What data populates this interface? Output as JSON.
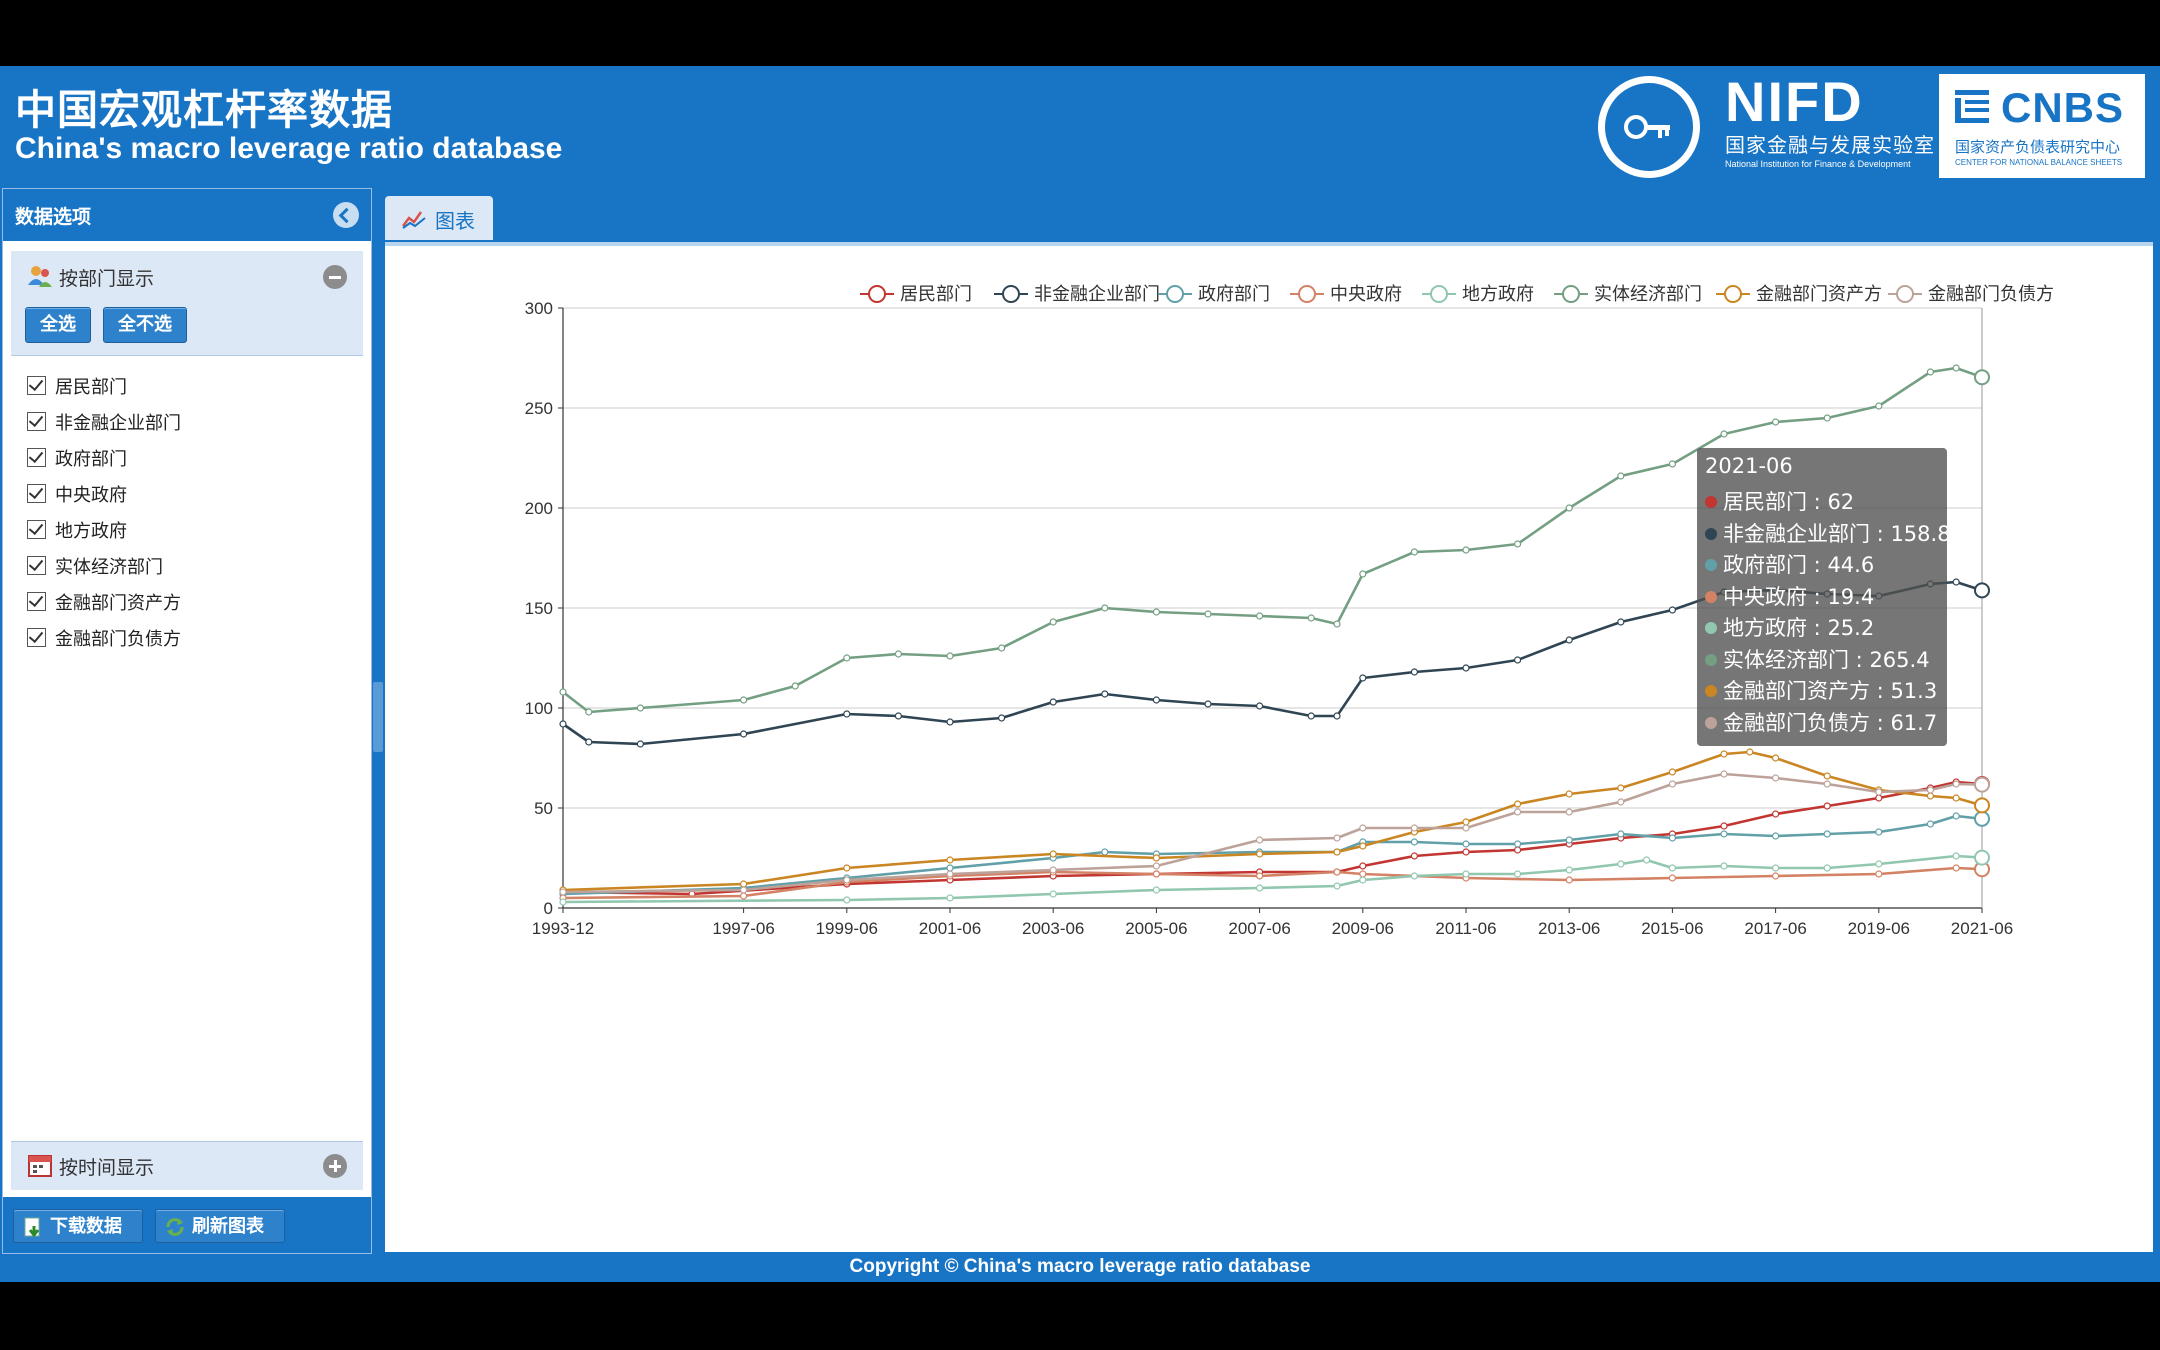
{
  "header": {
    "title_cn": "中国宏观杠杆率数据",
    "title_en": "China's macro leverage ratio database",
    "nifd_mark": "NIFD",
    "nifd_cn": "国家金融与发展实验室",
    "nifd_en": "National Institution for Finance & Development",
    "cnbs_mark": "CNBS",
    "cnbs_cn": "国家资产负债表研究中心",
    "cnbs_en": "CENTER FOR NATIONAL BALANCE SHEETS"
  },
  "left_panel": {
    "title": "数据选项",
    "by_sector": {
      "title": "按部门显示",
      "select_all": "全选",
      "select_none": "全不选",
      "items": [
        {
          "label": "居民部门",
          "checked": true
        },
        {
          "label": "非金融企业部门",
          "checked": true
        },
        {
          "label": "政府部门",
          "checked": true
        },
        {
          "label": "中央政府",
          "checked": true
        },
        {
          "label": "地方政府",
          "checked": true
        },
        {
          "label": "实体经济部门",
          "checked": true
        },
        {
          "label": "金融部门资产方",
          "checked": true
        },
        {
          "label": "金融部门负债方",
          "checked": true
        }
      ]
    },
    "by_time": {
      "title": "按时间显示"
    },
    "download_label": "下载数据",
    "refresh_label": "刷新图表"
  },
  "tab": {
    "label": "图表"
  },
  "footer": {
    "text": "Copyright © China's macro leverage ratio database"
  },
  "chart_data": {
    "type": "line",
    "ylim": [
      0,
      300
    ],
    "yticks": [
      0,
      50,
      100,
      150,
      200,
      250,
      300
    ],
    "xticks": [
      "1993-12",
      "1997-06",
      "1999-06",
      "2001-06",
      "2003-06",
      "2005-06",
      "2007-06",
      "2009-06",
      "2011-06",
      "2013-06",
      "2015-06",
      "2017-06",
      "2019-06",
      "2021-06"
    ],
    "grid": true,
    "legend_position": "top-right",
    "series": [
      {
        "name": "居民部门",
        "color": "#c23531",
        "points": [
          [
            "1993-12",
            8
          ],
          [
            "1996-06",
            7
          ],
          [
            "1999-06",
            12
          ],
          [
            "2001-06",
            14
          ],
          [
            "2003-06",
            16
          ],
          [
            "2005-06",
            17
          ],
          [
            "2007-06",
            18
          ],
          [
            "2008-12",
            18
          ],
          [
            "2009-06",
            21
          ],
          [
            "2010-06",
            26
          ],
          [
            "2011-06",
            28
          ],
          [
            "2012-06",
            29
          ],
          [
            "2013-06",
            32
          ],
          [
            "2014-06",
            35
          ],
          [
            "2015-06",
            37
          ],
          [
            "2016-06",
            41
          ],
          [
            "2017-06",
            47
          ],
          [
            "2018-06",
            51
          ],
          [
            "2019-06",
            55
          ],
          [
            "2020-06",
            60
          ],
          [
            "2020-12",
            63
          ],
          [
            "2021-06",
            62
          ]
        ]
      },
      {
        "name": "非金融企业部门",
        "color": "#2f4554",
        "points": [
          [
            "1993-12",
            92
          ],
          [
            "1994-06",
            83
          ],
          [
            "1995-06",
            82
          ],
          [
            "1997-06",
            87
          ],
          [
            "1999-06",
            97
          ],
          [
            "2000-06",
            96
          ],
          [
            "2001-06",
            93
          ],
          [
            "2002-06",
            95
          ],
          [
            "2003-06",
            103
          ],
          [
            "2004-06",
            107
          ],
          [
            "2005-06",
            104
          ],
          [
            "2006-06",
            102
          ],
          [
            "2007-06",
            101
          ],
          [
            "2008-06",
            96
          ],
          [
            "2008-12",
            96
          ],
          [
            "2009-06",
            115
          ],
          [
            "2010-06",
            118
          ],
          [
            "2011-06",
            120
          ],
          [
            "2012-06",
            124
          ],
          [
            "2013-06",
            134
          ],
          [
            "2014-06",
            143
          ],
          [
            "2015-06",
            149
          ],
          [
            "2016-06",
            158
          ],
          [
            "2017-06",
            159
          ],
          [
            "2018-06",
            157
          ],
          [
            "2019-06",
            156
          ],
          [
            "2020-06",
            162
          ],
          [
            "2020-12",
            163
          ],
          [
            "2021-06",
            158.8
          ]
        ]
      },
      {
        "name": "政府部门",
        "color": "#61a0a8",
        "points": [
          [
            "1993-12",
            7
          ],
          [
            "1997-06",
            10
          ],
          [
            "1999-06",
            15
          ],
          [
            "2001-06",
            20
          ],
          [
            "2003-06",
            25
          ],
          [
            "2004-06",
            28
          ],
          [
            "2005-06",
            27
          ],
          [
            "2007-06",
            28
          ],
          [
            "2008-12",
            28
          ],
          [
            "2009-06",
            33
          ],
          [
            "2010-06",
            33
          ],
          [
            "2011-06",
            32
          ],
          [
            "2012-06",
            32
          ],
          [
            "2013-06",
            34
          ],
          [
            "2014-06",
            37
          ],
          [
            "2015-06",
            35
          ],
          [
            "2016-06",
            37
          ],
          [
            "2017-06",
            36
          ],
          [
            "2018-06",
            37
          ],
          [
            "2019-06",
            38
          ],
          [
            "2020-06",
            42
          ],
          [
            "2020-12",
            46
          ],
          [
            "2021-06",
            44.6
          ]
        ]
      },
      {
        "name": "中央政府",
        "color": "#d48265",
        "points": [
          [
            "1993-12",
            5
          ],
          [
            "1997-06",
            6
          ],
          [
            "1999-06",
            13
          ],
          [
            "2001-06",
            16
          ],
          [
            "2003-06",
            18
          ],
          [
            "2005-06",
            17
          ],
          [
            "2007-06",
            16
          ],
          [
            "2008-12",
            18
          ],
          [
            "2009-06",
            17
          ],
          [
            "2011-06",
            15
          ],
          [
            "2013-06",
            14
          ],
          [
            "2015-06",
            15
          ],
          [
            "2017-06",
            16
          ],
          [
            "2019-06",
            17
          ],
          [
            "2020-12",
            20
          ],
          [
            "2021-06",
            19.4
          ]
        ]
      },
      {
        "name": "地方政府",
        "color": "#91c7ae",
        "points": [
          [
            "1993-12",
            3
          ],
          [
            "1999-06",
            4
          ],
          [
            "2001-06",
            5
          ],
          [
            "2003-06",
            7
          ],
          [
            "2005-06",
            9
          ],
          [
            "2007-06",
            10
          ],
          [
            "2008-12",
            11
          ],
          [
            "2009-06",
            14
          ],
          [
            "2010-06",
            16
          ],
          [
            "2011-06",
            17
          ],
          [
            "2012-06",
            17
          ],
          [
            "2013-06",
            19
          ],
          [
            "2014-06",
            22
          ],
          [
            "2014-12",
            24
          ],
          [
            "2015-06",
            20
          ],
          [
            "2016-06",
            21
          ],
          [
            "2017-06",
            20
          ],
          [
            "2018-06",
            20
          ],
          [
            "2019-06",
            22
          ],
          [
            "2020-12",
            26
          ],
          [
            "2021-06",
            25.2
          ]
        ]
      },
      {
        "name": "实体经济部门",
        "color": "#749f83",
        "points": [
          [
            "1993-12",
            108
          ],
          [
            "1994-06",
            98
          ],
          [
            "1995-06",
            100
          ],
          [
            "1997-06",
            104
          ],
          [
            "1998-06",
            111
          ],
          [
            "1999-06",
            125
          ],
          [
            "2000-06",
            127
          ],
          [
            "2001-06",
            126
          ],
          [
            "2002-06",
            130
          ],
          [
            "2003-06",
            143
          ],
          [
            "2004-06",
            150
          ],
          [
            "2005-06",
            148
          ],
          [
            "2006-06",
            147
          ],
          [
            "2007-06",
            146
          ],
          [
            "2008-06",
            145
          ],
          [
            "2008-12",
            142
          ],
          [
            "2009-06",
            167
          ],
          [
            "2010-06",
            178
          ],
          [
            "2011-06",
            179
          ],
          [
            "2012-06",
            182
          ],
          [
            "2013-06",
            200
          ],
          [
            "2014-06",
            216
          ],
          [
            "2015-06",
            222
          ],
          [
            "2016-06",
            237
          ],
          [
            "2017-06",
            243
          ],
          [
            "2018-06",
            245
          ],
          [
            "2019-06",
            251
          ],
          [
            "2020-06",
            268
          ],
          [
            "2020-12",
            270
          ],
          [
            "2021-06",
            265.4
          ]
        ]
      },
      {
        "name": "金融部门资产方",
        "color": "#ca8622",
        "points": [
          [
            "1993-12",
            9
          ],
          [
            "1997-06",
            12
          ],
          [
            "1999-06",
            20
          ],
          [
            "2001-06",
            24
          ],
          [
            "2003-06",
            27
          ],
          [
            "2005-06",
            25
          ],
          [
            "2007-06",
            27
          ],
          [
            "2008-12",
            28
          ],
          [
            "2009-06",
            31
          ],
          [
            "2010-06",
            38
          ],
          [
            "2011-06",
            43
          ],
          [
            "2012-06",
            52
          ],
          [
            "2013-06",
            57
          ],
          [
            "2014-06",
            60
          ],
          [
            "2015-06",
            68
          ],
          [
            "2016-06",
            77
          ],
          [
            "2016-12",
            78
          ],
          [
            "2017-06",
            75
          ],
          [
            "2018-06",
            66
          ],
          [
            "2019-06",
            59
          ],
          [
            "2020-06",
            56
          ],
          [
            "2020-12",
            55
          ],
          [
            "2021-06",
            51.3
          ]
        ]
      },
      {
        "name": "金融部门负债方",
        "color": "#bda29a",
        "points": [
          [
            "1993-12",
            8
          ],
          [
            "1997-06",
            9
          ],
          [
            "1999-06",
            14
          ],
          [
            "2001-06",
            17
          ],
          [
            "2003-06",
            19
          ],
          [
            "2005-06",
            21
          ],
          [
            "2007-06",
            34
          ],
          [
            "2008-12",
            35
          ],
          [
            "2009-06",
            40
          ],
          [
            "2010-06",
            40
          ],
          [
            "2011-06",
            40
          ],
          [
            "2012-06",
            48
          ],
          [
            "2013-06",
            48
          ],
          [
            "2014-06",
            53
          ],
          [
            "2015-06",
            62
          ],
          [
            "2016-06",
            67
          ],
          [
            "2017-06",
            65
          ],
          [
            "2018-06",
            62
          ],
          [
            "2019-06",
            58
          ],
          [
            "2020-06",
            59
          ],
          [
            "2020-12",
            62
          ],
          [
            "2021-06",
            61.7
          ]
        ]
      }
    ]
  },
  "tooltip": {
    "date": "2021-06",
    "rows": [
      {
        "name": "居民部门",
        "value": "62",
        "color": "#c23531"
      },
      {
        "name": "非金融企业部门",
        "value": "158.8",
        "color": "#2f4554"
      },
      {
        "name": "政府部门",
        "value": "44.6",
        "color": "#61a0a8"
      },
      {
        "name": "中央政府",
        "value": "19.4",
        "color": "#d48265"
      },
      {
        "name": "地方政府",
        "value": "25.2",
        "color": "#91c7ae"
      },
      {
        "name": "实体经济部门",
        "value": "265.4",
        "color": "#749f83"
      },
      {
        "name": "金融部门资产方",
        "value": "51.3",
        "color": "#ca8622"
      },
      {
        "name": "金融部门负债方",
        "value": "61.7",
        "color": "#bda29a"
      }
    ]
  }
}
